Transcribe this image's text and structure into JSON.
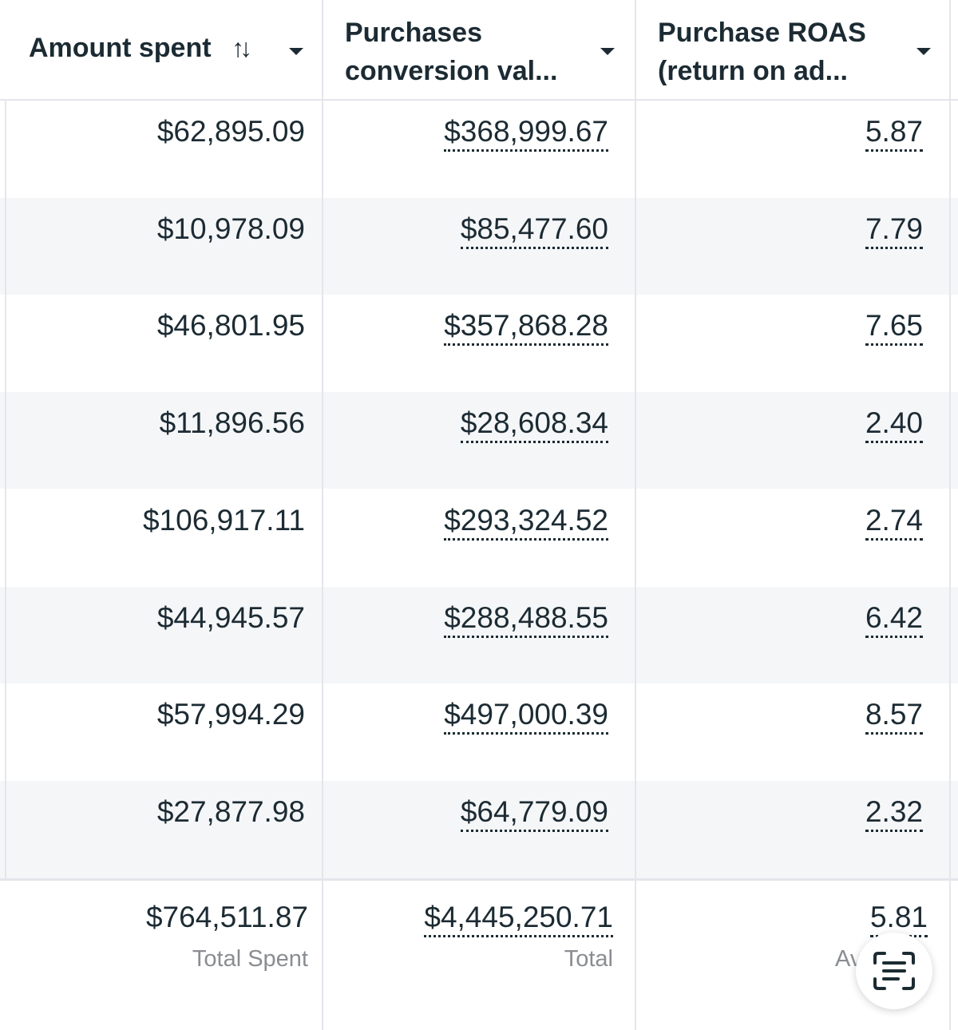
{
  "columns": {
    "amount_spent": "Amount spent",
    "sort_glyph": "↑↓",
    "purchases_value_line1": "Purchases",
    "purchases_value_line2": "conversion val...",
    "roas_line1": "Purchase ROAS",
    "roas_line2": "(return on ad..."
  },
  "rows": [
    {
      "spent": "$62,895.09",
      "value": "$368,999.67",
      "roas": "5.87"
    },
    {
      "spent": "$10,978.09",
      "value": "$85,477.60",
      "roas": "7.79"
    },
    {
      "spent": "$46,801.95",
      "value": "$357,868.28",
      "roas": "7.65"
    },
    {
      "spent": "$11,896.56",
      "value": "$28,608.34",
      "roas": "2.40"
    },
    {
      "spent": "$106,917.11",
      "value": "$293,324.52",
      "roas": "2.74"
    },
    {
      "spent": "$44,945.57",
      "value": "$288,488.55",
      "roas": "6.42"
    },
    {
      "spent": "$57,994.29",
      "value": "$497,000.39",
      "roas": "8.57"
    },
    {
      "spent": "$27,877.98",
      "value": "$64,779.09",
      "roas": "2.32"
    }
  ],
  "totals": {
    "spent": "$764,511.87",
    "spent_label": "Total Spent",
    "value": "$4,445,250.71",
    "value_label": "Total",
    "roas": "5.81",
    "roas_label": "Av"
  },
  "icons": {
    "sort": "sort-arrows-icon",
    "dropdown": "caret-down-icon",
    "lens": "text-scan-icon"
  },
  "colors": {
    "text": "#1c2b33",
    "muted": "#8a8d91",
    "row_alt": "#f5f6f8",
    "border": "#e4e6eb"
  }
}
